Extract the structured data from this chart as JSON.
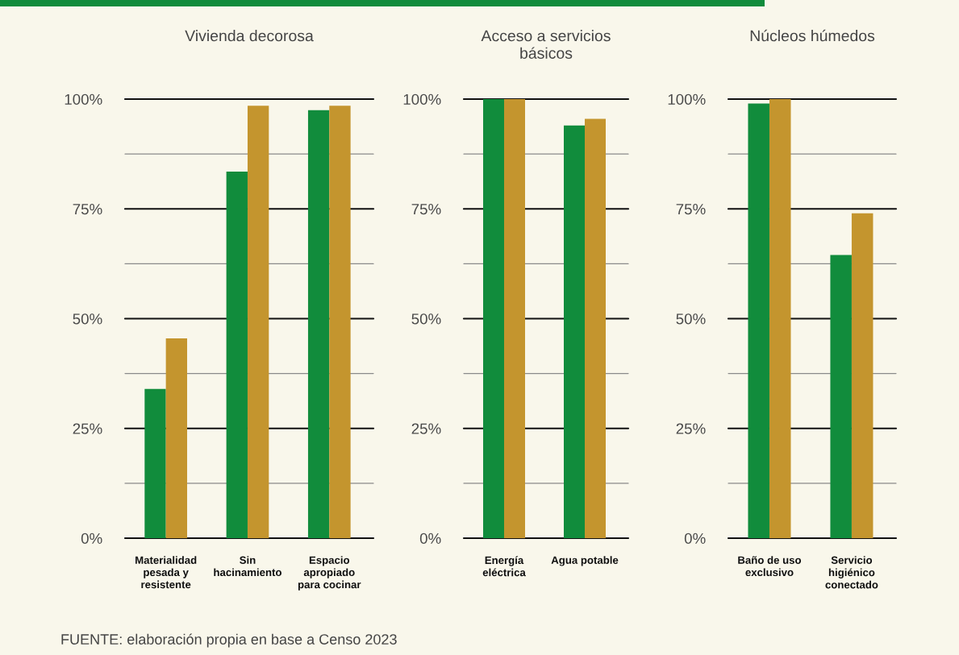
{
  "chart_data": [
    {
      "type": "bar",
      "title": "Vivienda decorosa",
      "categories": [
        "Materialidad\npesada y\nresistente",
        "Sin\nhacinamiento",
        "Espacio\napropiado\npara cocinar"
      ],
      "series": [
        {
          "color": "#118c3c",
          "values": [
            34,
            83.5,
            97.5
          ]
        },
        {
          "color": "#c4952e",
          "values": [
            45.5,
            98.5,
            98.5
          ]
        }
      ],
      "ylim": [
        0,
        100
      ],
      "yticks": [
        {
          "value": 0,
          "label": "0%"
        },
        {
          "value": 12.5,
          "label": null
        },
        {
          "value": 25,
          "label": "25%"
        },
        {
          "value": 37.5,
          "label": null
        },
        {
          "value": 50,
          "label": "50%"
        },
        {
          "value": 62.5,
          "label": null
        },
        {
          "value": 75,
          "label": "75%"
        },
        {
          "value": 87.5,
          "label": null
        },
        {
          "value": 100,
          "label": "100%"
        }
      ],
      "grid": "y",
      "annotations": [
        "FUENTE: elaboración propia en base a Censo 2023"
      ]
    },
    {
      "type": "bar",
      "title": "Acceso a servicios\nbásicos",
      "categories": [
        "Energía\neléctrica",
        "Agua potable"
      ],
      "series": [
        {
          "color": "#118c3c",
          "values": [
            100,
            94
          ]
        },
        {
          "color": "#c4952e",
          "values": [
            100,
            95.5
          ]
        }
      ],
      "ylim": [
        0,
        100
      ],
      "yticks": [
        {
          "value": 0,
          "label": "0%"
        },
        {
          "value": 12.5,
          "label": null
        },
        {
          "value": 25,
          "label": "25%"
        },
        {
          "value": 37.5,
          "label": null
        },
        {
          "value": 50,
          "label": "50%"
        },
        {
          "value": 62.5,
          "label": null
        },
        {
          "value": 75,
          "label": "75%"
        },
        {
          "value": 87.5,
          "label": null
        },
        {
          "value": 100,
          "label": "100%"
        }
      ],
      "grid": "y"
    },
    {
      "type": "bar",
      "title": "Núcleos húmedos",
      "categories": [
        "Baño de uso\nexclusivo",
        "Servicio\nhigiénico\nconectado"
      ],
      "series": [
        {
          "color": "#118c3c",
          "values": [
            99,
            64.5
          ]
        },
        {
          "color": "#c4952e",
          "values": [
            100,
            74
          ]
        }
      ],
      "ylim": [
        0,
        100
      ],
      "yticks": [
        {
          "value": 0,
          "label": "0%"
        },
        {
          "value": 12.5,
          "label": null
        },
        {
          "value": 25,
          "label": "25%"
        },
        {
          "value": 37.5,
          "label": null
        },
        {
          "value": 50,
          "label": "50%"
        },
        {
          "value": 62.5,
          "label": null
        },
        {
          "value": 75,
          "label": "75%"
        },
        {
          "value": 87.5,
          "label": null
        },
        {
          "value": 100,
          "label": "100%"
        }
      ],
      "grid": "y"
    }
  ]
}
